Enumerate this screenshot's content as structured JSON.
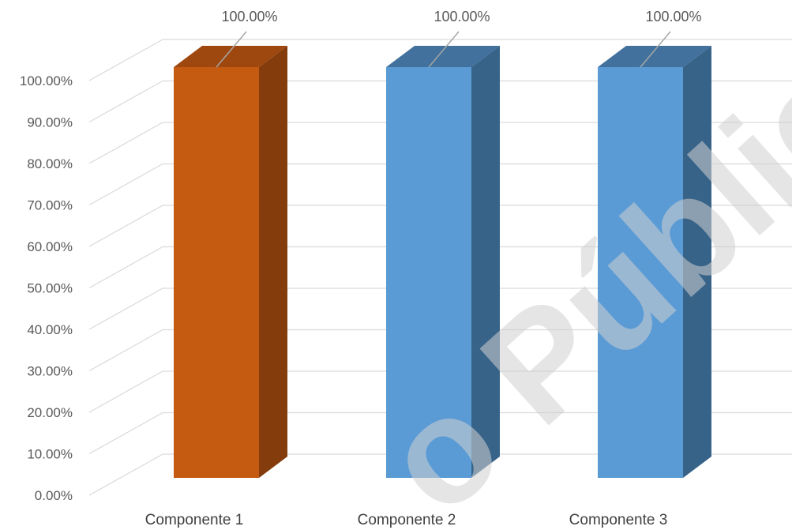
{
  "chart_data": {
    "type": "bar",
    "categories": [
      "Componente 1",
      "Componente 2",
      "Componente 3"
    ],
    "series": [
      {
        "values": [
          100.0,
          100.0,
          100.0
        ]
      }
    ],
    "data_labels": [
      "100.00%",
      "100.00%",
      "100.00%"
    ],
    "y_ticks": [
      "0.00%",
      "10.00%",
      "20.00%",
      "30.00%",
      "40.00%",
      "50.00%",
      "60.00%",
      "70.00%",
      "80.00%",
      "90.00%",
      "100.00%"
    ],
    "ylim": [
      0,
      100
    ],
    "grid": true,
    "legend": "none",
    "style": "3d-column",
    "colors": {
      "bar_1_front": "#c55a11",
      "bar_1_side": "#843c0c",
      "bar_1_top": "#9e4810",
      "bar_front": "#5b9bd5",
      "bar_side": "#376389",
      "bar_top": "#41719c",
      "grid": "#d9d9d9",
      "text": "#595959"
    }
  },
  "watermark": "o Públic"
}
